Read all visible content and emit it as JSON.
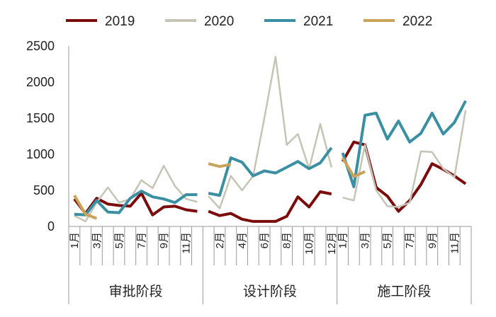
{
  "chart_data": {
    "type": "line",
    "title": "",
    "xlabel": "",
    "ylabel": "",
    "ylim": [
      0,
      2500
    ],
    "yticks": [
      0,
      500,
      1000,
      1500,
      2000,
      2500
    ],
    "grid": false,
    "legend_placement": "top",
    "groups": [
      {
        "name": "审批阶段",
        "tick_labels": [
          "1月",
          "",
          "3月",
          "",
          "5月",
          "",
          "7月",
          "",
          "9月",
          "",
          "11月",
          ""
        ]
      },
      {
        "name": "设计阶段",
        "tick_labels": [
          "",
          "2月",
          "",
          "4月",
          "",
          "6月",
          "",
          "8月",
          "",
          "10月",
          "",
          "12月"
        ]
      },
      {
        "name": "施工阶段",
        "tick_labels": [
          "1月",
          "",
          "3月",
          "",
          "5月",
          "",
          "7月",
          "",
          "9月",
          "",
          "11月",
          ""
        ]
      }
    ],
    "series": [
      {
        "name": "2019",
        "color": "#7b0c0c",
        "width": 4,
        "values": [
          [
            380,
            180,
            390,
            310,
            290,
            280,
            460,
            160,
            270,
            280,
            230,
            210
          ],
          [
            210,
            150,
            180,
            100,
            70,
            70,
            70,
            140,
            410,
            270,
            480,
            450
          ],
          [
            900,
            1170,
            1130,
            540,
            420,
            210,
            360,
            580,
            870,
            790,
            700,
            590
          ]
        ]
      },
      {
        "name": "2020",
        "color": "#c6c4b5",
        "width": 2.5,
        "values": [
          [
            150,
            70,
            330,
            540,
            330,
            380,
            640,
            530,
            840,
            560,
            380,
            340
          ],
          [
            420,
            250,
            700,
            500,
            700,
            1500,
            2350,
            1130,
            1280,
            800,
            1420,
            820
          ],
          [
            400,
            360,
            1130,
            500,
            280,
            270,
            330,
            1040,
            1030,
            800,
            680,
            1610
          ]
        ]
      },
      {
        "name": "2021",
        "color": "#3a8fa3",
        "width": 4,
        "values": [
          [
            170,
            160,
            360,
            200,
            190,
            390,
            490,
            410,
            380,
            330,
            440,
            440
          ],
          [
            460,
            430,
            950,
            890,
            700,
            770,
            740,
            820,
            900,
            800,
            880,
            1090
          ],
          [
            1020,
            550,
            1540,
            1570,
            1210,
            1460,
            1170,
            1290,
            1570,
            1280,
            1440,
            1740
          ]
        ]
      },
      {
        "name": "2022",
        "color": "#c9a35a",
        "width": 4,
        "values": [
          [
            430,
            170,
            110
          ],
          [
            870,
            830,
            860
          ],
          [
            950,
            690,
            760
          ]
        ]
      }
    ]
  }
}
